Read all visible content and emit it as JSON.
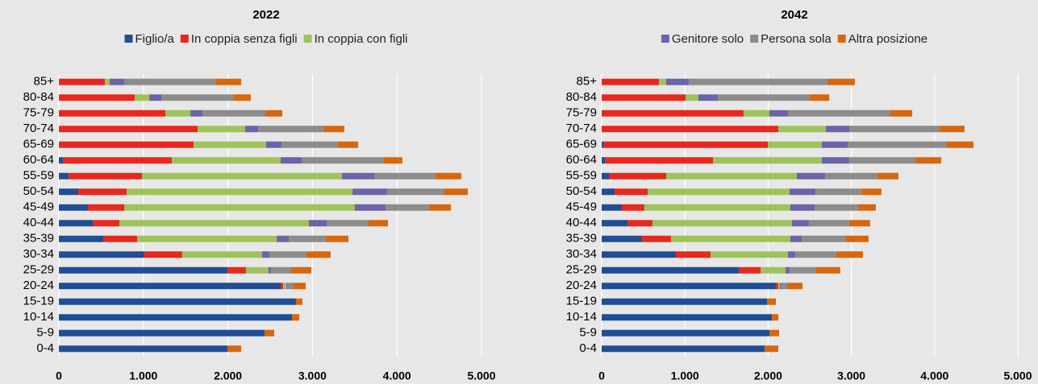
{
  "chart_data": [
    {
      "type": "stacked-bar-horizontal",
      "title": "2022",
      "categories": [
        "85+",
        "80-84",
        "75-79",
        "70-74",
        "65-69",
        "60-64",
        "55-59",
        "50-54",
        "45-49",
        "40-44",
        "35-39",
        "30-34",
        "25-29",
        "20-24",
        "15-19",
        "10-14",
        "5-9",
        "0-4"
      ],
      "series": [
        {
          "name": "Figlio/a",
          "color": "#1f4e96",
          "values": [
            0,
            0,
            0,
            0,
            0,
            48,
            115,
            229,
            344,
            401,
            525,
            1011,
            1994,
            2624,
            2805,
            2758,
            2433,
            1994
          ]
        },
        {
          "name": "In coppia senza figli",
          "color": "#e8281e",
          "values": [
            544,
            897,
            1260,
            1641,
            1594,
            1288,
            868,
            573,
            429,
            315,
            401,
            448,
            219,
            29,
            0,
            0,
            0,
            0
          ]
        },
        {
          "name": "In coppia con figli",
          "color": "#9dc35a",
          "values": [
            57,
            172,
            296,
            563,
            859,
            1288,
            2366,
            2672,
            2729,
            2242,
            1651,
            945,
            267,
            38,
            0,
            0,
            0,
            0
          ]
        },
        {
          "color": "#6b64a8",
          "values": [
            172,
            143,
            143,
            153,
            181,
            248,
            382,
            410,
            363,
            210,
            143,
            86,
            29,
            10,
            0,
            0,
            0,
            0
          ]
        },
        {
          "color": "#8c8c8c",
          "values": [
            1088,
            859,
            744,
            782,
            668,
            973,
            725,
            668,
            515,
            496,
            439,
            439,
            239,
            76,
            0,
            0,
            0,
            0
          ]
        },
        {
          "color": "#d9660b",
          "values": [
            296,
            200,
            200,
            239,
            239,
            219,
            305,
            286,
            258,
            229,
            267,
            286,
            239,
            143,
            76,
            86,
            115,
            162
          ]
        }
      ],
      "xlim": [
        0,
        5000
      ],
      "xticks": [
        0,
        {
          "value": 1000,
          "label": "1.000"
        },
        {
          "value": 2000,
          "label": "2.000"
        },
        {
          "value": 3000,
          "label": "3.000"
        },
        {
          "value": 4000,
          "label": "4.000"
        },
        {
          "value": 5000,
          "label": "5.000"
        }
      ],
      "grid": true
    },
    {
      "type": "stacked-bar-horizontal",
      "title": "2042",
      "categories": [
        "85+",
        "80-84",
        "75-79",
        "70-74",
        "65-69",
        "60-64",
        "55-59",
        "50-54",
        "45-49",
        "40-44",
        "35-39",
        "30-34",
        "25-29",
        "20-24",
        "15-19",
        "10-14",
        "5-9",
        "0-4"
      ],
      "series": [
        {
          "color": "#1f4e96",
          "values": [
            0,
            0,
            0,
            0,
            19,
            39,
            87,
            155,
            242,
            310,
            484,
            891,
            1647,
            2093,
            1986,
            2045,
            2016,
            1957
          ]
        },
        {
          "color": "#e8281e",
          "values": [
            688,
            1008,
            1705,
            2122,
            1977,
            1298,
            688,
            397,
            271,
            300,
            349,
            417,
            262,
            29,
            0,
            0,
            0,
            0
          ]
        },
        {
          "color": "#9dc35a",
          "values": [
            87,
            155,
            310,
            572,
            649,
            1308,
            1570,
            1705,
            1754,
            1676,
            1434,
            930,
            300,
            19,
            0,
            0,
            0,
            0
          ]
        },
        {
          "name": "Genitore solo",
          "color": "#6b64a8",
          "values": [
            271,
            233,
            223,
            281,
            310,
            329,
            339,
            310,
            291,
            203,
            136,
            87,
            48,
            10,
            0,
            0,
            0,
            0
          ]
        },
        {
          "name": "Persona sola",
          "color": "#8c8c8c",
          "values": [
            1667,
            1105,
            1231,
            1085,
            1192,
            795,
            630,
            552,
            523,
            484,
            523,
            494,
            310,
            78,
            0,
            0,
            0,
            0
          ]
        },
        {
          "name": "Altra posizione",
          "color": "#d9660b",
          "values": [
            329,
            233,
            262,
            300,
            320,
            310,
            252,
            242,
            213,
            252,
            281,
            320,
            300,
            184,
            107,
            78,
            116,
            165
          ]
        }
      ],
      "xlim": [
        0,
        5000
      ],
      "xticks": [
        0,
        {
          "value": 1000,
          "label": "1.000"
        },
        {
          "value": 2000,
          "label": "2.000"
        },
        {
          "value": 3000,
          "label": "3.000"
        },
        {
          "value": 4000,
          "label": "4.000"
        },
        {
          "value": 5000,
          "label": "5.000"
        }
      ],
      "grid": true
    }
  ]
}
